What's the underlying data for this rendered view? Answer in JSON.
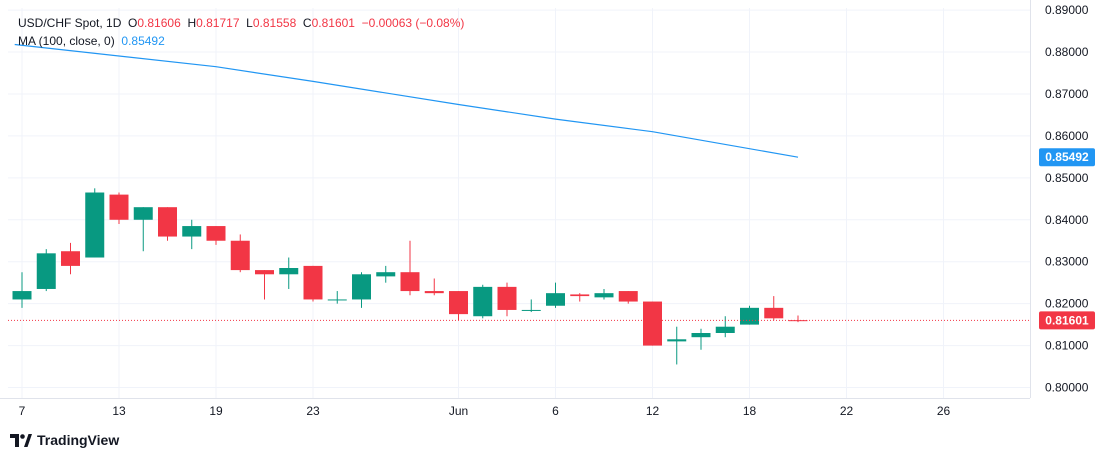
{
  "header": {
    "symbol": "USD/CHF Spot, 1D",
    "o_label": "O",
    "o_value": "0.81606",
    "h_label": "H",
    "h_value": "0.81717",
    "l_label": "L",
    "l_value": "0.81558",
    "c_label": "C",
    "c_value": "0.81601",
    "change": "−0.00063 (−0.08%)",
    "ma_label": "MA (100, close, 0)",
    "ma_value": "0.85492"
  },
  "brand": {
    "name": "TradingView"
  },
  "colors": {
    "up": "#089981",
    "down": "#f23645",
    "ma": "#2196f3",
    "grid": "#f0f3fa",
    "text": "#131722"
  },
  "chart_data": {
    "type": "candlestick",
    "y_ticks": [
      "0.80000",
      "0.81000",
      "0.82000",
      "0.83000",
      "0.84000",
      "0.85000",
      "0.86000",
      "0.87000",
      "0.88000",
      "0.89000"
    ],
    "ylim": [
      0.7975,
      0.8905
    ],
    "x_ticks": [
      {
        "label": "7",
        "index": 0
      },
      {
        "label": "13",
        "index": 4
      },
      {
        "label": "19",
        "index": 8
      },
      {
        "label": "23",
        "index": 12
      },
      {
        "label": "Jun",
        "index": 18
      },
      {
        "label": "6",
        "index": 22
      },
      {
        "label": "12",
        "index": 26
      },
      {
        "label": "18",
        "index": 30
      },
      {
        "label": "22",
        "index": 34
      },
      {
        "label": "26",
        "index": 38
      }
    ],
    "candles": [
      {
        "o": 0.821,
        "h": 0.8275,
        "l": 0.819,
        "c": 0.823
      },
      {
        "o": 0.8235,
        "h": 0.833,
        "l": 0.823,
        "c": 0.832
      },
      {
        "o": 0.8325,
        "h": 0.8345,
        "l": 0.827,
        "c": 0.829
      },
      {
        "o": 0.831,
        "h": 0.8475,
        "l": 0.831,
        "c": 0.8465
      },
      {
        "o": 0.846,
        "h": 0.8465,
        "l": 0.839,
        "c": 0.84
      },
      {
        "o": 0.84,
        "h": 0.843,
        "l": 0.8325,
        "c": 0.843
      },
      {
        "o": 0.843,
        "h": 0.843,
        "l": 0.835,
        "c": 0.836
      },
      {
        "o": 0.836,
        "h": 0.84,
        "l": 0.833,
        "c": 0.8385
      },
      {
        "o": 0.8385,
        "h": 0.8385,
        "l": 0.834,
        "c": 0.835
      },
      {
        "o": 0.835,
        "h": 0.8365,
        "l": 0.8275,
        "c": 0.828
      },
      {
        "o": 0.828,
        "h": 0.828,
        "l": 0.821,
        "c": 0.827
      },
      {
        "o": 0.827,
        "h": 0.831,
        "l": 0.8235,
        "c": 0.8285
      },
      {
        "o": 0.829,
        "h": 0.829,
        "l": 0.8205,
        "c": 0.821
      },
      {
        "o": 0.821,
        "h": 0.823,
        "l": 0.82,
        "c": 0.821
      },
      {
        "o": 0.821,
        "h": 0.8275,
        "l": 0.819,
        "c": 0.827
      },
      {
        "o": 0.8265,
        "h": 0.829,
        "l": 0.825,
        "c": 0.8275
      },
      {
        "o": 0.8275,
        "h": 0.835,
        "l": 0.822,
        "c": 0.823
      },
      {
        "o": 0.823,
        "h": 0.826,
        "l": 0.822,
        "c": 0.8225
      },
      {
        "o": 0.823,
        "h": 0.823,
        "l": 0.816,
        "c": 0.8175
      },
      {
        "o": 0.817,
        "h": 0.8245,
        "l": 0.8165,
        "c": 0.824
      },
      {
        "o": 0.824,
        "h": 0.825,
        "l": 0.817,
        "c": 0.8185
      },
      {
        "o": 0.8185,
        "h": 0.821,
        "l": 0.818,
        "c": 0.8185
      },
      {
        "o": 0.8195,
        "h": 0.825,
        "l": 0.819,
        "c": 0.8225
      },
      {
        "o": 0.8222,
        "h": 0.8225,
        "l": 0.8205,
        "c": 0.8218
      },
      {
        "o": 0.8215,
        "h": 0.8235,
        "l": 0.821,
        "c": 0.8225
      },
      {
        "o": 0.823,
        "h": 0.823,
        "l": 0.82,
        "c": 0.8205
      },
      {
        "o": 0.8205,
        "h": 0.8205,
        "l": 0.81,
        "c": 0.81
      },
      {
        "o": 0.811,
        "h": 0.8145,
        "l": 0.8055,
        "c": 0.8115
      },
      {
        "o": 0.812,
        "h": 0.814,
        "l": 0.809,
        "c": 0.813
      },
      {
        "o": 0.813,
        "h": 0.817,
        "l": 0.812,
        "c": 0.8145
      },
      {
        "o": 0.815,
        "h": 0.8195,
        "l": 0.815,
        "c": 0.819
      },
      {
        "o": 0.819,
        "h": 0.8218,
        "l": 0.816,
        "c": 0.8165
      },
      {
        "o": 0.81606,
        "h": 0.81717,
        "l": 0.81558,
        "c": 0.81601
      }
    ],
    "ma": {
      "name": "MA (100, close, 0)",
      "points": [
        {
          "i": -0.3,
          "v": 0.8818
        },
        {
          "i": 8,
          "v": 0.8765
        },
        {
          "i": 12,
          "v": 0.873
        },
        {
          "i": 18,
          "v": 0.8675
        },
        {
          "i": 22,
          "v": 0.864
        },
        {
          "i": 26,
          "v": 0.861
        },
        {
          "i": 32,
          "v": 0.85492
        }
      ]
    },
    "last_price": {
      "value": "0.81601"
    },
    "ma_last": {
      "value": "0.85492"
    }
  }
}
